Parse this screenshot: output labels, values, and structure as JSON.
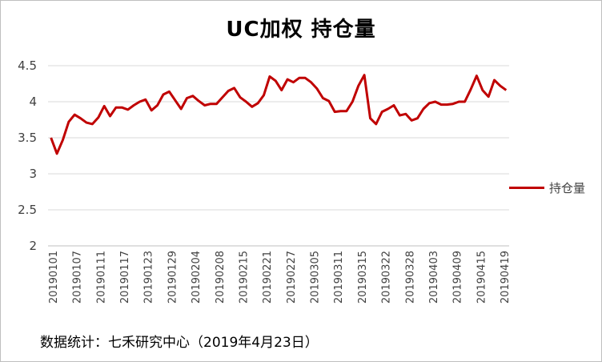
{
  "chart_data": {
    "type": "line",
    "title": "UC加权  持仓量",
    "xlabel": "",
    "ylabel": "",
    "ylim": [
      2,
      4.5
    ],
    "yticks": [
      "2",
      "2.5",
      "3",
      "3.5",
      "4",
      "4.5"
    ],
    "grid": "horizontal",
    "legend": "right",
    "x_tick_labels": [
      "20190101",
      "20190107",
      "20190111",
      "20190117",
      "20190123",
      "20190129",
      "20190204",
      "20190208",
      "20190215",
      "20190221",
      "20190227",
      "20190305",
      "20190311",
      "20190315",
      "20190322",
      "20190328",
      "20190403",
      "20190409",
      "20190415",
      "20190419"
    ],
    "series": [
      {
        "name": "持仓量",
        "color": "#c00000",
        "values": [
          3.5,
          3.28,
          3.47,
          3.72,
          3.82,
          3.77,
          3.71,
          3.69,
          3.78,
          3.94,
          3.8,
          3.92,
          3.92,
          3.89,
          3.95,
          4.0,
          4.03,
          3.88,
          3.95,
          4.1,
          4.14,
          4.02,
          3.9,
          4.05,
          4.08,
          4.01,
          3.95,
          3.97,
          3.97,
          4.06,
          4.15,
          4.19,
          4.06,
          4.0,
          3.93,
          3.98,
          4.09,
          4.35,
          4.29,
          4.16,
          4.31,
          4.27,
          4.33,
          4.33,
          4.27,
          4.18,
          4.05,
          4.01,
          3.86,
          3.87,
          3.87,
          4.0,
          4.22,
          4.37,
          3.77,
          3.69,
          3.86,
          3.9,
          3.95,
          3.81,
          3.83,
          3.74,
          3.77,
          3.9,
          3.98,
          4.0,
          3.96,
          3.96,
          3.97,
          4.0,
          4.0,
          4.17,
          4.36,
          4.16,
          4.07,
          4.3,
          4.22,
          4.16
        ]
      }
    ]
  },
  "source_note": "数据统计：七禾研究中心（2019年4月23日）"
}
